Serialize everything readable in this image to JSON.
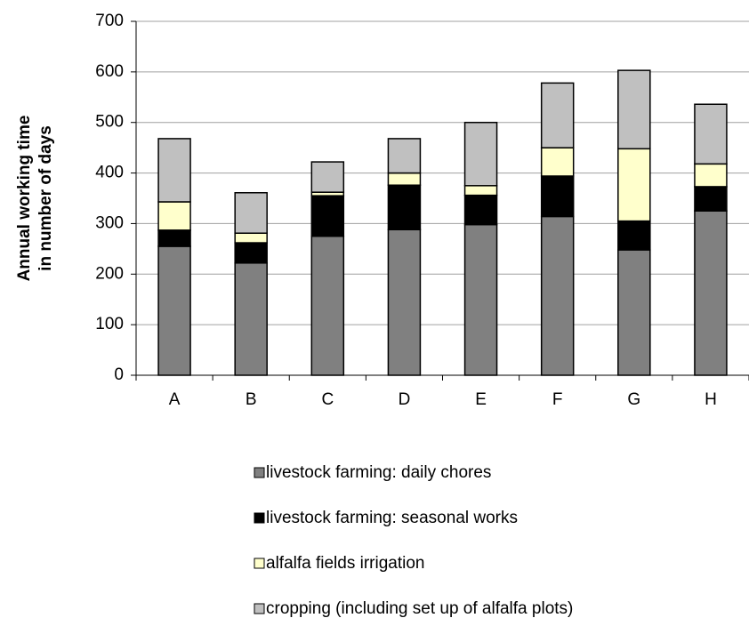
{
  "chart_data": {
    "type": "stacked-bar",
    "ylabel": [
      "Annual working time",
      "in number of days"
    ],
    "categories": [
      "A",
      "B",
      "C",
      "D",
      "E",
      "F",
      "G",
      "H"
    ],
    "series": [
      {
        "name": "livestock farming: daily chores",
        "color": "#808080",
        "values": [
          255,
          222,
          275,
          288,
          298,
          314,
          248,
          325
        ]
      },
      {
        "name": "livestock farming: seasonal works",
        "color": "#000000",
        "values": [
          32,
          40,
          80,
          88,
          58,
          80,
          57,
          48
        ]
      },
      {
        "name": "alfalfa fields irrigation",
        "color": "#ffffcc",
        "values": [
          56,
          19,
          7,
          24,
          19,
          56,
          143,
          45
        ]
      },
      {
        "name": "cropping (including set up of alfalfa plots)",
        "color": "#c0c0c0",
        "values": [
          125,
          80,
          60,
          68,
          125,
          128,
          155,
          118
        ]
      }
    ],
    "ylim": [
      0,
      700
    ],
    "yticks": [
      0,
      100,
      200,
      300,
      400,
      500,
      600,
      700
    ],
    "grid": true,
    "legend": "bottom"
  }
}
